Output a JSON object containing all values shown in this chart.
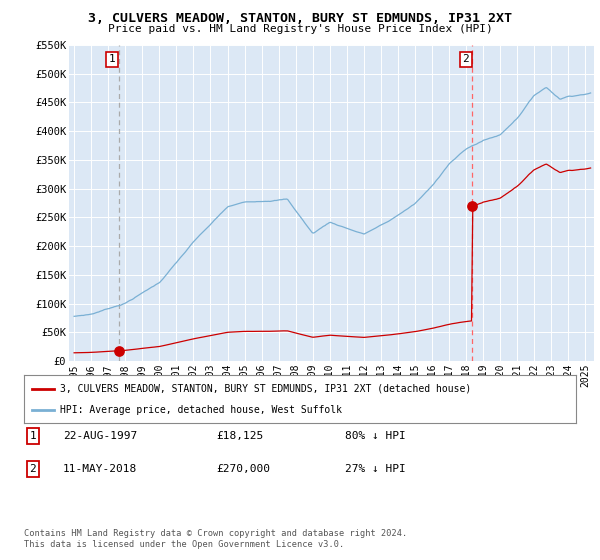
{
  "title": "3, CULVERS MEADOW, STANTON, BURY ST EDMUNDS, IP31 2XT",
  "subtitle": "Price paid vs. HM Land Registry's House Price Index (HPI)",
  "sale1_date": "22-AUG-1997",
  "sale1_price": 18125,
  "sale2_date": "11-MAY-2018",
  "sale2_price": 270000,
  "legend_house": "3, CULVERS MEADOW, STANTON, BURY ST EDMUNDS, IP31 2XT (detached house)",
  "legend_hpi": "HPI: Average price, detached house, West Suffolk",
  "copyright": "Contains HM Land Registry data © Crown copyright and database right 2024.\nThis data is licensed under the Open Government Licence v3.0.",
  "house_color": "#cc0000",
  "hpi_color": "#7ab0d4",
  "vline1_color": "#aaaaaa",
  "vline2_color": "#ff6666",
  "bg_color": "#dce8f5",
  "ylim_min": 0,
  "ylim_max": 550000,
  "yticks": [
    0,
    50000,
    100000,
    150000,
    200000,
    250000,
    300000,
    350000,
    400000,
    450000,
    500000,
    550000
  ],
  "ytick_labels": [
    "£0",
    "£50K",
    "£100K",
    "£150K",
    "£200K",
    "£250K",
    "£300K",
    "£350K",
    "£400K",
    "£450K",
    "£500K",
    "£550K"
  ],
  "xstart": 1994.7,
  "xend": 2025.5,
  "sale1_x": 1997.622,
  "sale2_x": 2018.369
}
